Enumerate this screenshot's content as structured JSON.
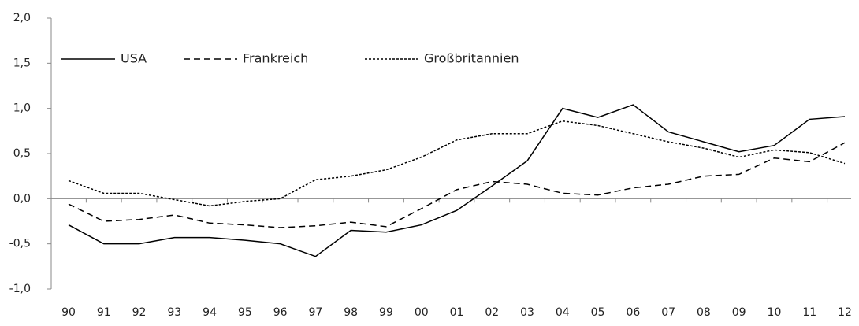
{
  "chart_data": {
    "type": "line",
    "categories": [
      "90",
      "91",
      "92",
      "93",
      "94",
      "95",
      "96",
      "97",
      "98",
      "99",
      "00",
      "01",
      "02",
      "03",
      "04",
      "05",
      "06",
      "07",
      "08",
      "09",
      "10",
      "11",
      "12"
    ],
    "series": [
      {
        "name": "USA",
        "color": "#000000",
        "dash": "solid",
        "values": [
          -0.29,
          -0.5,
          -0.5,
          -0.43,
          -0.43,
          -0.46,
          -0.5,
          -0.64,
          -0.35,
          -0.37,
          -0.29,
          -0.13,
          0.14,
          0.42,
          1.0,
          0.9,
          1.04,
          0.74,
          0.63,
          0.52,
          0.59,
          0.88,
          0.91
        ]
      },
      {
        "name": "Frankreich",
        "color": "#000000",
        "dash": "dashed",
        "values": [
          -0.06,
          -0.25,
          -0.23,
          -0.18,
          -0.27,
          -0.29,
          -0.32,
          -0.3,
          -0.26,
          -0.31,
          -0.11,
          0.1,
          0.19,
          0.16,
          0.06,
          0.04,
          0.12,
          0.16,
          0.25,
          0.27,
          0.45,
          0.41,
          0.62
        ]
      },
      {
        "name": "Großbritannien",
        "color": "#000000",
        "dash": "dotted",
        "values": [
          0.2,
          0.06,
          0.06,
          -0.01,
          -0.08,
          -0.03,
          0.0,
          0.21,
          0.25,
          0.32,
          0.46,
          0.65,
          0.72,
          0.72,
          0.86,
          0.81,
          0.72,
          0.63,
          0.56,
          0.46,
          0.54,
          0.51,
          0.39
        ]
      }
    ],
    "ylim": [
      -1.0,
      2.0
    ],
    "yticks": [
      {
        "value": -1.0,
        "label": "-1,0"
      },
      {
        "value": -0.5,
        "label": "-0,5"
      },
      {
        "value": 0,
        "label": "0,0"
      },
      {
        "value": 0.5,
        "label": "0,5"
      },
      {
        "value": 1.0,
        "label": "1,0"
      },
      {
        "value": 1.5,
        "label": "1,5"
      },
      {
        "value": 2.0,
        "label": "2,0"
      }
    ],
    "grid": false,
    "legend": "top-left"
  }
}
